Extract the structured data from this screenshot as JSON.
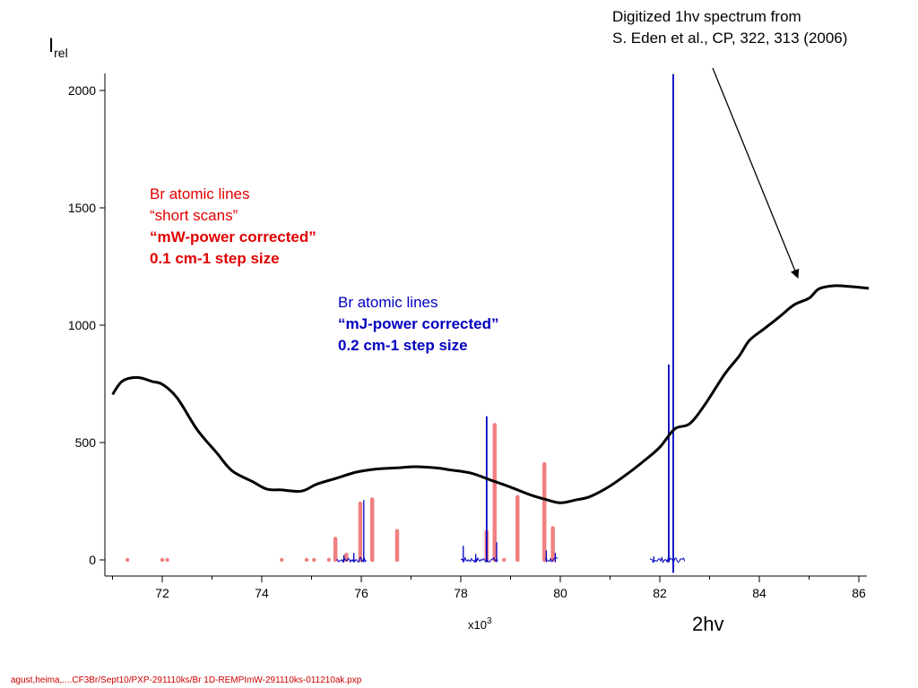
{
  "chart_data": {
    "type": "line",
    "ylabel_main": "I",
    "ylabel_sub": "rel",
    "x_multiplier_label": "x10",
    "x_multiplier_exp": "3",
    "xlim": [
      70.9,
      86.2
    ],
    "ylim": [
      -60,
      2090
    ],
    "xticks": [
      72,
      74,
      76,
      78,
      80,
      82,
      84,
      86
    ],
    "xtick_labels": [
      "72",
      "74",
      "76",
      "78",
      "80",
      "82",
      "84",
      "86"
    ],
    "yticks": [
      0,
      500,
      1000,
      1500,
      2000
    ],
    "ytick_labels": [
      "0",
      "500",
      "1000",
      "1500",
      "2000"
    ],
    "grid": false,
    "series": [
      {
        "kind": "smooth-line",
        "color": "#000000",
        "x": [
          71.0,
          71.2,
          71.5,
          71.8,
          72.0,
          72.3,
          72.7,
          73.1,
          73.4,
          73.8,
          74.1,
          74.4,
          74.8,
          75.1,
          75.5,
          75.9,
          76.3,
          76.7,
          77.1,
          77.5,
          77.8,
          78.2,
          78.6,
          79.0,
          79.4,
          79.7,
          80.0,
          80.3,
          80.6,
          81.0,
          81.4,
          81.7,
          82.0,
          82.3,
          82.6,
          82.9,
          83.3,
          83.6,
          83.8,
          84.1,
          84.4,
          84.7,
          85.0,
          85.2,
          85.5,
          85.8,
          86.2
        ],
        "y": [
          705,
          762,
          777,
          760,
          748,
          690,
          555,
          455,
          380,
          335,
          302,
          298,
          293,
          322,
          348,
          374,
          387,
          392,
          397,
          392,
          383,
          370,
          340,
          310,
          277,
          258,
          243,
          255,
          270,
          315,
          375,
          425,
          480,
          558,
          580,
          660,
          790,
          870,
          935,
          985,
          1035,
          1087,
          1115,
          1155,
          1168,
          1165,
          1157
        ]
      },
      {
        "kind": "thick-bars",
        "color": "#f08080",
        "points": [
          {
            "x": 71.3,
            "y": 0
          },
          {
            "x": 72.0,
            "y": 0
          },
          {
            "x": 72.1,
            "y": 0
          },
          {
            "x": 74.4,
            "y": 0
          },
          {
            "x": 74.9,
            "y": 0
          },
          {
            "x": 75.05,
            "y": 0
          },
          {
            "x": 75.35,
            "y": 0
          },
          {
            "x": 75.48,
            "y": 90
          },
          {
            "x": 75.7,
            "y": 22
          },
          {
            "x": 75.98,
            "y": 240
          },
          {
            "x": 76.22,
            "y": 258
          },
          {
            "x": 76.72,
            "y": 123
          },
          {
            "x": 78.52,
            "y": 120
          },
          {
            "x": 78.68,
            "y": 575
          },
          {
            "x": 78.87,
            "y": 0
          },
          {
            "x": 79.14,
            "y": 268
          },
          {
            "x": 79.68,
            "y": 408
          },
          {
            "x": 79.85,
            "y": 135
          }
        ]
      },
      {
        "kind": "spikes",
        "color": "#0000c0",
        "points": [
          {
            "x": 75.65,
            "y": 20
          },
          {
            "x": 75.85,
            "y": 30
          },
          {
            "x": 76.05,
            "y": 255
          },
          {
            "x": 78.05,
            "y": 60
          },
          {
            "x": 78.3,
            "y": 25
          },
          {
            "x": 78.52,
            "y": 612
          },
          {
            "x": 78.72,
            "y": 75
          },
          {
            "x": 79.72,
            "y": 40
          },
          {
            "x": 79.9,
            "y": 30
          },
          {
            "x": 81.88,
            "y": 15
          },
          {
            "x": 82.18,
            "y": 832
          },
          {
            "x": 82.27,
            "y": 2070
          }
        ],
        "noise_segments": [
          [
            75.5,
            76.1
          ],
          [
            78.0,
            78.75
          ],
          [
            79.7,
            79.95
          ],
          [
            81.8,
            82.5
          ]
        ]
      }
    ],
    "annotations": [
      {
        "id": "red-title",
        "text": "Br atomic lines",
        "color": "#e00000",
        "bold": false
      },
      {
        "id": "red-sub1",
        "text": "“short scans”",
        "color": "#e00000",
        "bold": false
      },
      {
        "id": "red-sub2",
        "text": "“mW-power corrected”",
        "color": "#e00000",
        "bold": true
      },
      {
        "id": "red-sub3",
        "text": "0.1 cm-1 step size",
        "color": "#e00000",
        "bold": true
      },
      {
        "id": "blue-title",
        "text": "Br atomic lines",
        "color": "#0000c0",
        "bold": false
      },
      {
        "id": "blue-sub1",
        "text": "“mJ-power corrected”",
        "color": "#0000c0",
        "bold": true
      },
      {
        "id": "blue-sub2",
        "text": "0.2 cm-1 step size",
        "color": "#0000c0",
        "bold": true
      }
    ],
    "arrow_label_line1": "Digitized 1hv spectrum from",
    "arrow_label_line2": "S. Eden et al., CP, 322, 313 (2006)",
    "arrow_target": {
      "x": 84.8,
      "y": 1175
    },
    "x_extra_label": "2hv",
    "footer": "agust,heima,....CF3Br/Sept10/PXP-291110ks/Br 1D-REMPImW-291110ks-011210ak.pxp"
  }
}
